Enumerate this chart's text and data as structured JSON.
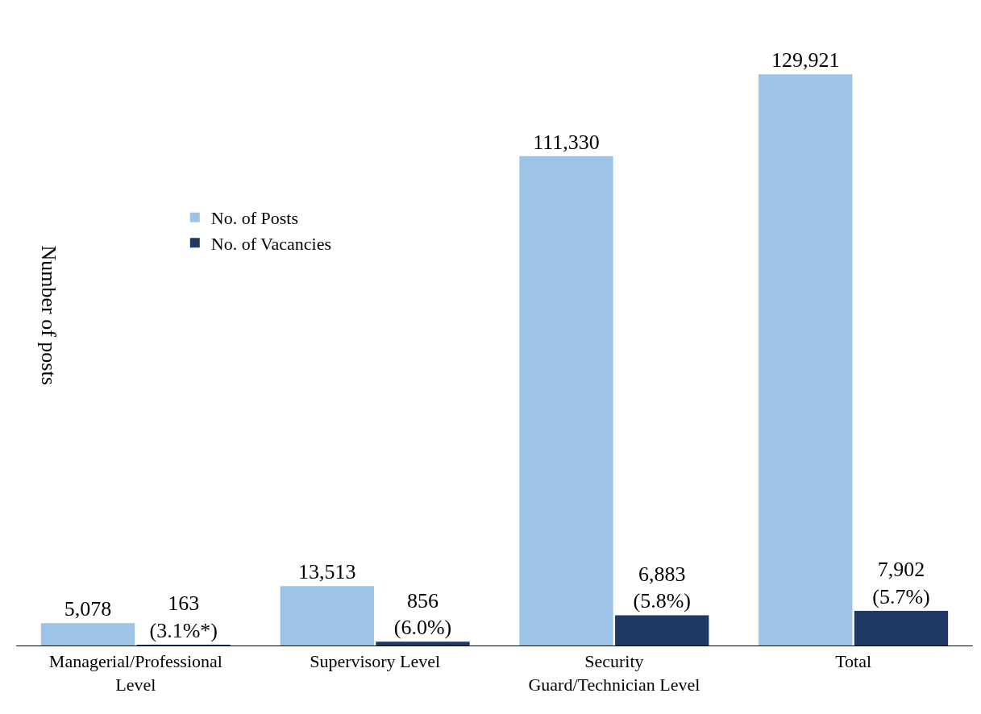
{
  "chart_data": {
    "type": "bar",
    "ylabel": "Number of posts",
    "categories": [
      "Managerial/Professional\nLevel",
      "Supervisory Level",
      "Security\nGuard/Technician Level",
      "Total"
    ],
    "series": [
      {
        "name": "No. of Posts",
        "color": "#9dc3e6",
        "values": [
          5078,
          13513,
          111330,
          129921
        ],
        "value_labels": [
          "5,078",
          "13,513",
          "111,330",
          "129,921"
        ]
      },
      {
        "name": "No. of Vacancies",
        "color": "#1f3864",
        "values": [
          163,
          856,
          6883,
          7902
        ],
        "value_labels": [
          "163\n(3.1%*)",
          "856\n(6.0%)",
          "6,883\n(5.8%)",
          "7,902\n(5.7%)"
        ]
      }
    ],
    "legend": "top left",
    "grid": false
  }
}
